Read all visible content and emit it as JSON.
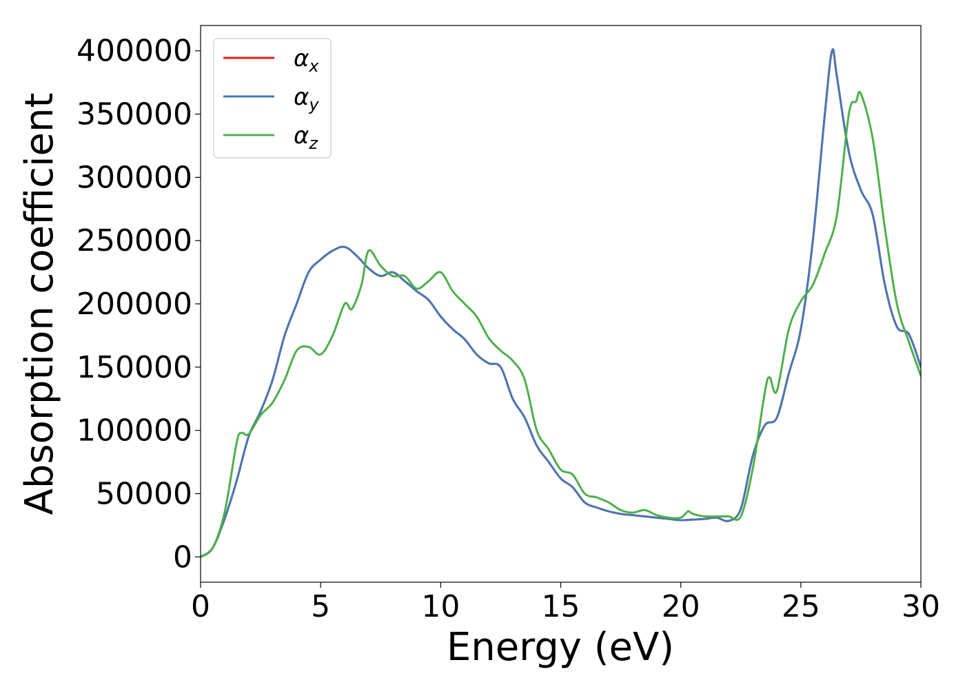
{
  "chart_data": {
    "type": "line",
    "xlabel": "Energy (eV)",
    "ylabel": "Absorption coefficient",
    "xlim": [
      0,
      30
    ],
    "ylim": [
      -20000,
      420000
    ],
    "xticks": [
      0,
      5,
      10,
      15,
      20,
      25,
      30
    ],
    "xtick_labels": [
      "0",
      "5",
      "10",
      "15",
      "20",
      "25",
      "30"
    ],
    "yticks": [
      0,
      50000,
      100000,
      150000,
      200000,
      250000,
      300000,
      350000,
      400000
    ],
    "ytick_labels": [
      "0",
      "50000",
      "100000",
      "150000",
      "200000",
      "250000",
      "300000",
      "350000",
      "400000"
    ],
    "grid": false,
    "legend_position": "top-left",
    "series": [
      {
        "name": "α",
        "sub": "x",
        "color": "#e41a1c",
        "x": [
          0,
          0.5,
          1,
          1.5,
          2,
          2.5,
          3,
          3.5,
          4,
          4.5,
          5,
          5.5,
          6,
          6.5,
          7,
          7.5,
          8,
          8.5,
          9,
          9.5,
          10,
          10.5,
          11,
          11.5,
          12,
          12.5,
          13,
          13.5,
          14,
          14.5,
          15,
          15.5,
          16,
          16.5,
          17,
          17.5,
          18,
          18.5,
          19,
          19.5,
          20,
          20.5,
          21,
          21.5,
          22,
          22.5,
          23,
          23.5,
          24,
          24.5,
          25,
          25.5,
          26,
          26.3,
          26.5,
          27,
          27.5,
          28,
          28.5,
          29,
          29.5,
          30
        ],
        "y": [
          0,
          7000,
          30000,
          60000,
          95000,
          115000,
          140000,
          175000,
          200000,
          225000,
          235000,
          242000,
          245000,
          238000,
          228000,
          222000,
          225000,
          218000,
          210000,
          203000,
          190000,
          180000,
          172000,
          160000,
          153000,
          150000,
          125000,
          110000,
          88000,
          75000,
          62000,
          55000,
          43000,
          39000,
          36000,
          34000,
          33000,
          32000,
          31000,
          30000,
          29000,
          29500,
          30000,
          31000,
          28500,
          38000,
          80000,
          104000,
          110000,
          145000,
          180000,
          250000,
          350000,
          400000,
          380000,
          320000,
          290000,
          270000,
          215000,
          182000,
          176000,
          150000
        ]
      },
      {
        "name": "α",
        "sub": "y",
        "color": "#4878b4",
        "x": [
          0,
          0.5,
          1,
          1.5,
          2,
          2.5,
          3,
          3.5,
          4,
          4.5,
          5,
          5.5,
          6,
          6.5,
          7,
          7.5,
          8,
          8.5,
          9,
          9.5,
          10,
          10.5,
          11,
          11.5,
          12,
          12.5,
          13,
          13.5,
          14,
          14.5,
          15,
          15.5,
          16,
          16.5,
          17,
          17.5,
          18,
          18.5,
          19,
          19.5,
          20,
          20.5,
          21,
          21.5,
          22,
          22.5,
          23,
          23.5,
          24,
          24.5,
          25,
          25.5,
          26,
          26.3,
          26.5,
          27,
          27.5,
          28,
          28.5,
          29,
          29.5,
          30
        ],
        "y": [
          0,
          7000,
          30000,
          60000,
          95000,
          115000,
          140000,
          175000,
          200000,
          225000,
          235000,
          242000,
          245000,
          238000,
          228000,
          222000,
          225000,
          218000,
          210000,
          203000,
          190000,
          180000,
          172000,
          160000,
          153000,
          150000,
          125000,
          110000,
          88000,
          75000,
          62000,
          55000,
          43000,
          39000,
          36000,
          34000,
          33000,
          32000,
          31000,
          30000,
          29000,
          29500,
          30000,
          31000,
          28500,
          38000,
          80000,
          104000,
          110000,
          145000,
          180000,
          250000,
          350000,
          400000,
          380000,
          320000,
          290000,
          270000,
          215000,
          182000,
          176000,
          150000
        ]
      },
      {
        "name": "α",
        "sub": "z",
        "color": "#4daf4a",
        "x": [
          0,
          0.5,
          1,
          1.5,
          1.7,
          2,
          2.5,
          3,
          3.5,
          4,
          4.5,
          5,
          5.5,
          6,
          6.3,
          6.7,
          7,
          7.5,
          8,
          8.5,
          9,
          9.5,
          10,
          10.5,
          11,
          11.5,
          12,
          12.5,
          13,
          13.5,
          14,
          14.5,
          15,
          15.5,
          16,
          16.5,
          17,
          17.5,
          18,
          18.5,
          19,
          19.5,
          20,
          20.3,
          20.5,
          21,
          21.5,
          22,
          22.5,
          23,
          23.5,
          23.7,
          24,
          24.5,
          25,
          25.5,
          26,
          26.5,
          27,
          27.3,
          27.5,
          28,
          28.5,
          29,
          29.5,
          30
        ],
        "y": [
          0,
          7000,
          35000,
          90000,
          98000,
          97000,
          112000,
          122000,
          140000,
          163000,
          166000,
          160000,
          175000,
          200000,
          196000,
          215000,
          242000,
          230000,
          222000,
          222000,
          212000,
          218000,
          225000,
          210000,
          200000,
          190000,
          173000,
          163000,
          155000,
          140000,
          100000,
          85000,
          69000,
          65000,
          50000,
          47000,
          43000,
          37000,
          35000,
          37000,
          33000,
          31000,
          31000,
          36000,
          34000,
          32000,
          32000,
          32000,
          32000,
          70000,
          130000,
          142000,
          131000,
          180000,
          202000,
          215000,
          240000,
          270000,
          350000,
          360000,
          366000,
          330000,
          260000,
          200000,
          170000,
          143000
        ]
      }
    ]
  }
}
